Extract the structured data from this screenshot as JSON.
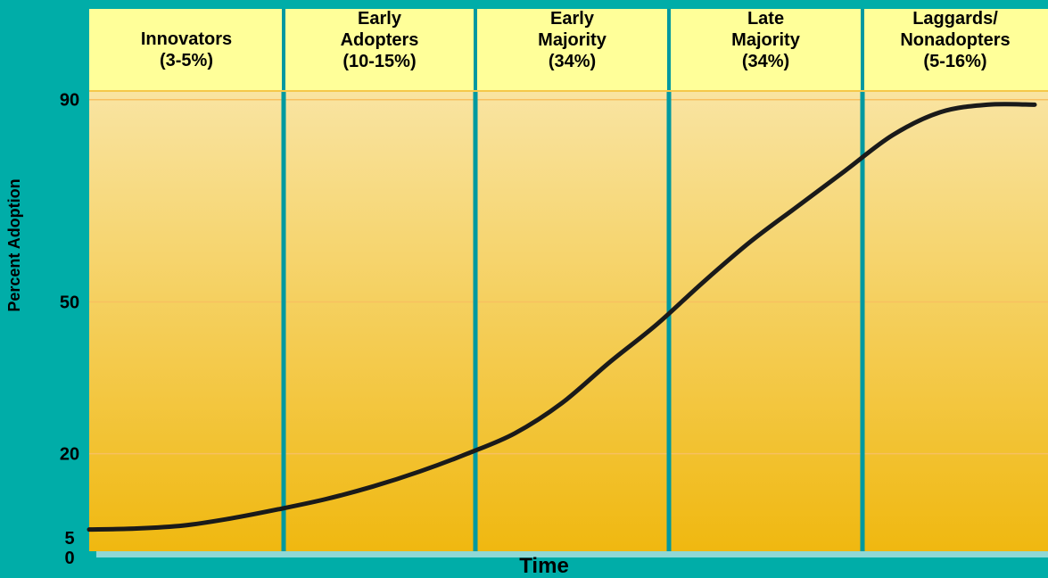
{
  "colors": {
    "background": "#00ADA8",
    "header_fill": "#FFFF99",
    "plot_top": "#F9E4A2",
    "plot_bottom": "#F0B810",
    "divider": "#0099A0",
    "gridline": "#F8C060",
    "curve": "#1A1A1A"
  },
  "chart_data": {
    "type": "line",
    "title": "",
    "xlabel": "Time",
    "ylabel": "Percent Adoption",
    "y_ticks": [
      {
        "value": 0,
        "label": "0"
      },
      {
        "value": 5,
        "label": "5"
      },
      {
        "value": 20,
        "label": "20"
      },
      {
        "value": 50,
        "label": "50"
      },
      {
        "value": 90,
        "label": "90"
      }
    ],
    "gridlines": [
      {
        "value": 20
      },
      {
        "value": 50
      },
      {
        "value": 90
      }
    ],
    "categories": [
      {
        "lines": [
          "Innovators",
          "(3-5%)"
        ]
      },
      {
        "lines": [
          "Early",
          "Adopters",
          "(10-15%)"
        ]
      },
      {
        "lines": [
          "Early",
          "Majority",
          "(34%)"
        ]
      },
      {
        "lines": [
          "Late",
          "Majority",
          "(34%)"
        ]
      },
      {
        "lines": [
          "Laggards/",
          "Nonadopters",
          "(5-16%)"
        ]
      }
    ],
    "series": [
      {
        "x": [
          0,
          0.05,
          0.1,
          0.15,
          0.2,
          0.25,
          0.3,
          0.35,
          0.4,
          0.45,
          0.5,
          0.55,
          0.6,
          0.65,
          0.7,
          0.75,
          0.8,
          0.85,
          0.9,
          0.95,
          1
        ],
        "values": [
          5,
          5.2,
          5.8,
          7.2,
          9,
          11,
          13.5,
          16.5,
          20,
          24,
          30,
          38,
          45.5,
          54,
          62,
          69,
          76,
          83,
          87.5,
          89,
          89
        ]
      }
    ],
    "grid": true,
    "legend": "none"
  }
}
